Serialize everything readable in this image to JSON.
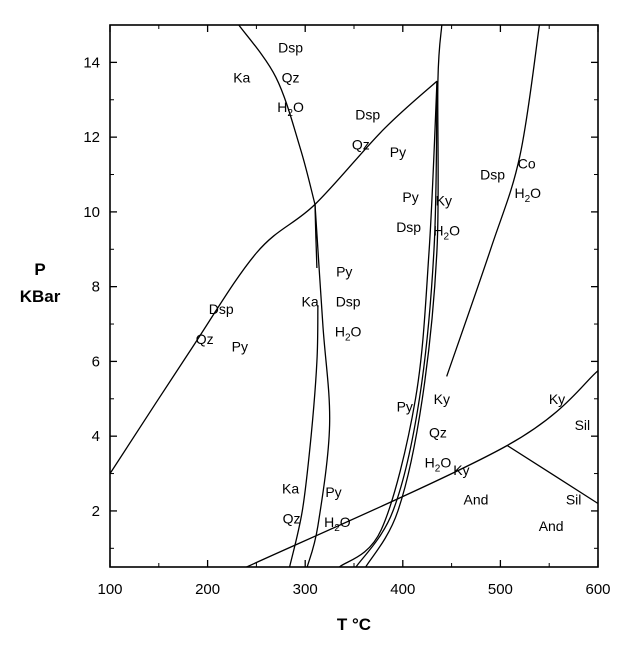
{
  "axes": {
    "x_title": "T °C",
    "y_title_line1": "P",
    "y_title_line2": "KBar",
    "x_ticks": [
      "100",
      "200",
      "300",
      "400",
      "500",
      "600"
    ],
    "y_ticks": [
      "2",
      "4",
      "6",
      "8",
      "10",
      "12",
      "14"
    ]
  },
  "curve_data": {
    "x_range": [
      100,
      600
    ],
    "y_range": [
      0.5,
      15
    ],
    "curves": [
      {
        "points": [
          [
            100,
            3.0
          ],
          [
            180,
            6.2
          ],
          [
            250,
            8.9
          ],
          [
            310,
            10.2
          ],
          [
            380,
            12.2
          ],
          [
            435,
            13.5
          ]
        ]
      },
      {
        "points": [
          [
            232,
            15
          ],
          [
            270,
            13.6
          ],
          [
            295,
            11.7
          ],
          [
            310,
            10.2
          ]
        ]
      },
      {
        "points": [
          [
            310,
            10.2
          ],
          [
            311,
            9.3
          ],
          [
            312,
            8.5
          ]
        ]
      },
      {
        "points": [
          [
            313,
            7.5
          ],
          [
            312,
            6.0
          ],
          [
            306,
            4.0
          ],
          [
            297,
            2.0
          ],
          [
            284,
            0.5
          ]
        ]
      },
      {
        "points": [
          [
            310,
            10.2
          ],
          [
            318,
            7.0
          ],
          [
            325,
            4.3
          ],
          [
            313,
            1.6
          ],
          [
            302,
            0.5
          ]
        ]
      },
      {
        "points": [
          [
            435,
            13.5
          ],
          [
            427,
            9.0
          ],
          [
            413,
            5.0
          ],
          [
            378,
            1.5
          ],
          [
            335,
            0.5
          ]
        ]
      },
      {
        "points": [
          [
            435,
            13.5
          ],
          [
            432,
            9.0
          ],
          [
            417,
            5.0
          ],
          [
            390,
            2.0
          ],
          [
            352,
            0.5
          ]
        ]
      },
      {
        "points": [
          [
            440,
            15
          ],
          [
            436,
            13.5
          ],
          [
            435,
            9.0
          ],
          [
            420,
            5.0
          ],
          [
            395,
            2.0
          ],
          [
            362,
            0.5
          ]
        ]
      },
      {
        "points": [
          [
            540,
            15
          ],
          [
            520,
            11.5
          ],
          [
            490,
            9.0
          ],
          [
            445,
            5.6
          ]
        ]
      },
      {
        "points": [
          [
            240,
            0.5
          ],
          [
            507,
            3.75
          ],
          [
            600,
            5.75
          ]
        ]
      },
      {
        "points": [
          [
            507,
            3.75
          ],
          [
            600,
            2.2
          ]
        ]
      }
    ]
  },
  "labels": [
    {
      "t": 285,
      "p": 14.4,
      "text": "Dsp"
    },
    {
      "t": 235,
      "p": 13.6,
      "text": "Ka"
    },
    {
      "t": 285,
      "p": 13.6,
      "text": "Qz"
    },
    {
      "t": 285,
      "p": 12.8,
      "text": "H",
      "sub": "2",
      "after": "O"
    },
    {
      "t": 364,
      "p": 12.6,
      "text": "Dsp"
    },
    {
      "t": 357,
      "p": 11.8,
      "text": "Qz"
    },
    {
      "t": 395,
      "p": 11.6,
      "text": "Py"
    },
    {
      "t": 492,
      "p": 11.0,
      "text": "Dsp"
    },
    {
      "t": 527,
      "p": 11.3,
      "text": "Co"
    },
    {
      "t": 528,
      "p": 10.5,
      "text": "H",
      "sub": "2",
      "after": "O"
    },
    {
      "t": 408,
      "p": 10.4,
      "text": "Py"
    },
    {
      "t": 442,
      "p": 10.3,
      "text": "Ky"
    },
    {
      "t": 406,
      "p": 9.6,
      "text": "Dsp"
    },
    {
      "t": 445,
      "p": 9.5,
      "text": "H",
      "sub": "2",
      "after": "O"
    },
    {
      "t": 340,
      "p": 8.4,
      "text": "Py"
    },
    {
      "t": 214,
      "p": 7.4,
      "text": "Dsp"
    },
    {
      "t": 305,
      "p": 7.6,
      "text": "Ka"
    },
    {
      "t": 344,
      "p": 7.6,
      "text": "Dsp"
    },
    {
      "t": 344,
      "p": 6.8,
      "text": "H",
      "sub": "2",
      "after": "O"
    },
    {
      "t": 197,
      "p": 6.6,
      "text": "Qz"
    },
    {
      "t": 233,
      "p": 6.4,
      "text": "Py"
    },
    {
      "t": 402,
      "p": 4.8,
      "text": "Py"
    },
    {
      "t": 440,
      "p": 5.0,
      "text": "Ky"
    },
    {
      "t": 436,
      "p": 4.1,
      "text": "Qz"
    },
    {
      "t": 436,
      "p": 3.3,
      "text": "H",
      "sub": "2",
      "after": "O"
    },
    {
      "t": 558,
      "p": 5.0,
      "text": "Ky"
    },
    {
      "t": 584,
      "p": 4.3,
      "text": "Sil"
    },
    {
      "t": 285,
      "p": 2.6,
      "text": "Ka"
    },
    {
      "t": 329,
      "p": 2.5,
      "text": "Py"
    },
    {
      "t": 286,
      "p": 1.8,
      "text": "Qz"
    },
    {
      "t": 333,
      "p": 1.7,
      "text": "H",
      "sub": "2",
      "after": "O"
    },
    {
      "t": 460,
      "p": 3.1,
      "text": "Ky"
    },
    {
      "t": 475,
      "p": 2.3,
      "text": "And"
    },
    {
      "t": 575,
      "p": 2.3,
      "text": "Sil"
    },
    {
      "t": 552,
      "p": 1.6,
      "text": "And"
    }
  ]
}
